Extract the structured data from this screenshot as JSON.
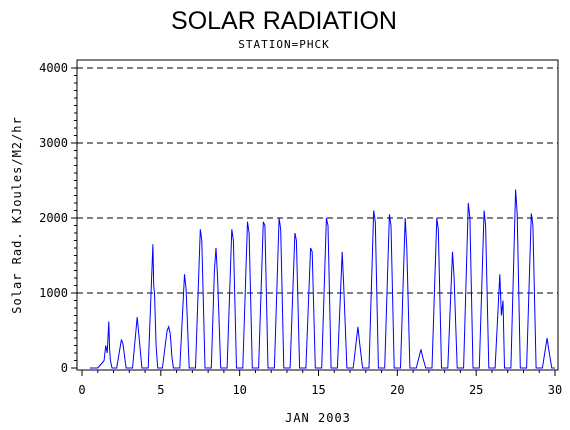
{
  "chart_data": {
    "type": "line",
    "title": "SOLAR RADIATION",
    "subtitle": "STATION=PHCK",
    "xlabel": "JAN 2003",
    "ylabel": "Solar Rad. KJoules/M2/hr",
    "xlim": [
      0,
      30
    ],
    "ylim": [
      0,
      4000
    ],
    "xticks": [
      "0",
      "5",
      "10",
      "15",
      "20",
      "25",
      "30"
    ],
    "yticks": [
      "0",
      "1000",
      "2000",
      "3000",
      "4000"
    ],
    "grid": "horizontal dashed",
    "series_color": "#0000ff",
    "series": [
      {
        "x": [
          0.5,
          1.0,
          1.4,
          1.5,
          1.6,
          1.7,
          1.75,
          1.8,
          1.9,
          2.2,
          2.5,
          2.6,
          2.8,
          3.2,
          3.5,
          3.6,
          3.8,
          4.2,
          4.5,
          4.55,
          4.6,
          4.7,
          4.8,
          5.1,
          5.4,
          5.5,
          5.6,
          5.7,
          5.8,
          6.2,
          6.5,
          6.6,
          6.8,
          7.2,
          7.5,
          7.6,
          7.8,
          8.2,
          8.4,
          8.5,
          8.6,
          8.8,
          9.2,
          9.5,
          9.6,
          9.8,
          10.2,
          10.5,
          10.6,
          10.8,
          11.2,
          11.5,
          11.6,
          11.8,
          12.2,
          12.5,
          12.6,
          12.8,
          13.2,
          13.5,
          13.6,
          13.8,
          14.2,
          14.5,
          14.6,
          14.8,
          15.2,
          15.5,
          15.6,
          15.8,
          16.2,
          16.5,
          16.6,
          16.8,
          17.2,
          17.5,
          17.6,
          17.8,
          18.2,
          18.5,
          18.6,
          18.8,
          19.2,
          19.5,
          19.6,
          19.8,
          20.2,
          20.5,
          20.6,
          20.8,
          21.2,
          21.5,
          21.6,
          21.8,
          22.2,
          22.5,
          22.6,
          22.8,
          23.2,
          23.5,
          23.6,
          23.8,
          24.2,
          24.5,
          24.6,
          24.8,
          25.2,
          25.5,
          25.6,
          25.8,
          26.2,
          26.5,
          26.6,
          26.7,
          26.8,
          27.2,
          27.5,
          27.6,
          27.8,
          28.2,
          28.5,
          28.6,
          28.8,
          29.2,
          29.5,
          29.6,
          29.8,
          30.0
        ],
        "y": [
          0,
          0,
          100,
          300,
          200,
          620,
          250,
          100,
          0,
          0,
          380,
          320,
          0,
          0,
          680,
          450,
          0,
          0,
          1650,
          1100,
          1000,
          300,
          0,
          0,
          500,
          550,
          450,
          150,
          0,
          0,
          1250,
          1050,
          0,
          0,
          1850,
          1700,
          0,
          0,
          1300,
          1600,
          1200,
          0,
          0,
          1850,
          1700,
          0,
          0,
          1950,
          1800,
          0,
          0,
          1950,
          1900,
          0,
          0,
          2000,
          1850,
          0,
          0,
          1800,
          1700,
          0,
          0,
          1600,
          1550,
          0,
          0,
          2000,
          1900,
          0,
          0,
          1550,
          1100,
          0,
          0,
          550,
          350,
          0,
          0,
          2100,
          1950,
          0,
          0,
          2050,
          1900,
          0,
          0,
          2000,
          1600,
          0,
          0,
          250,
          150,
          0,
          0,
          2000,
          1850,
          0,
          0,
          1550,
          1200,
          0,
          0,
          2200,
          2000,
          0,
          0,
          2100,
          1900,
          0,
          0,
          1250,
          700,
          900,
          0,
          0,
          2380,
          2050,
          0,
          0,
          2060,
          1900,
          0,
          0,
          400,
          250,
          0,
          0
        ]
      }
    ]
  }
}
